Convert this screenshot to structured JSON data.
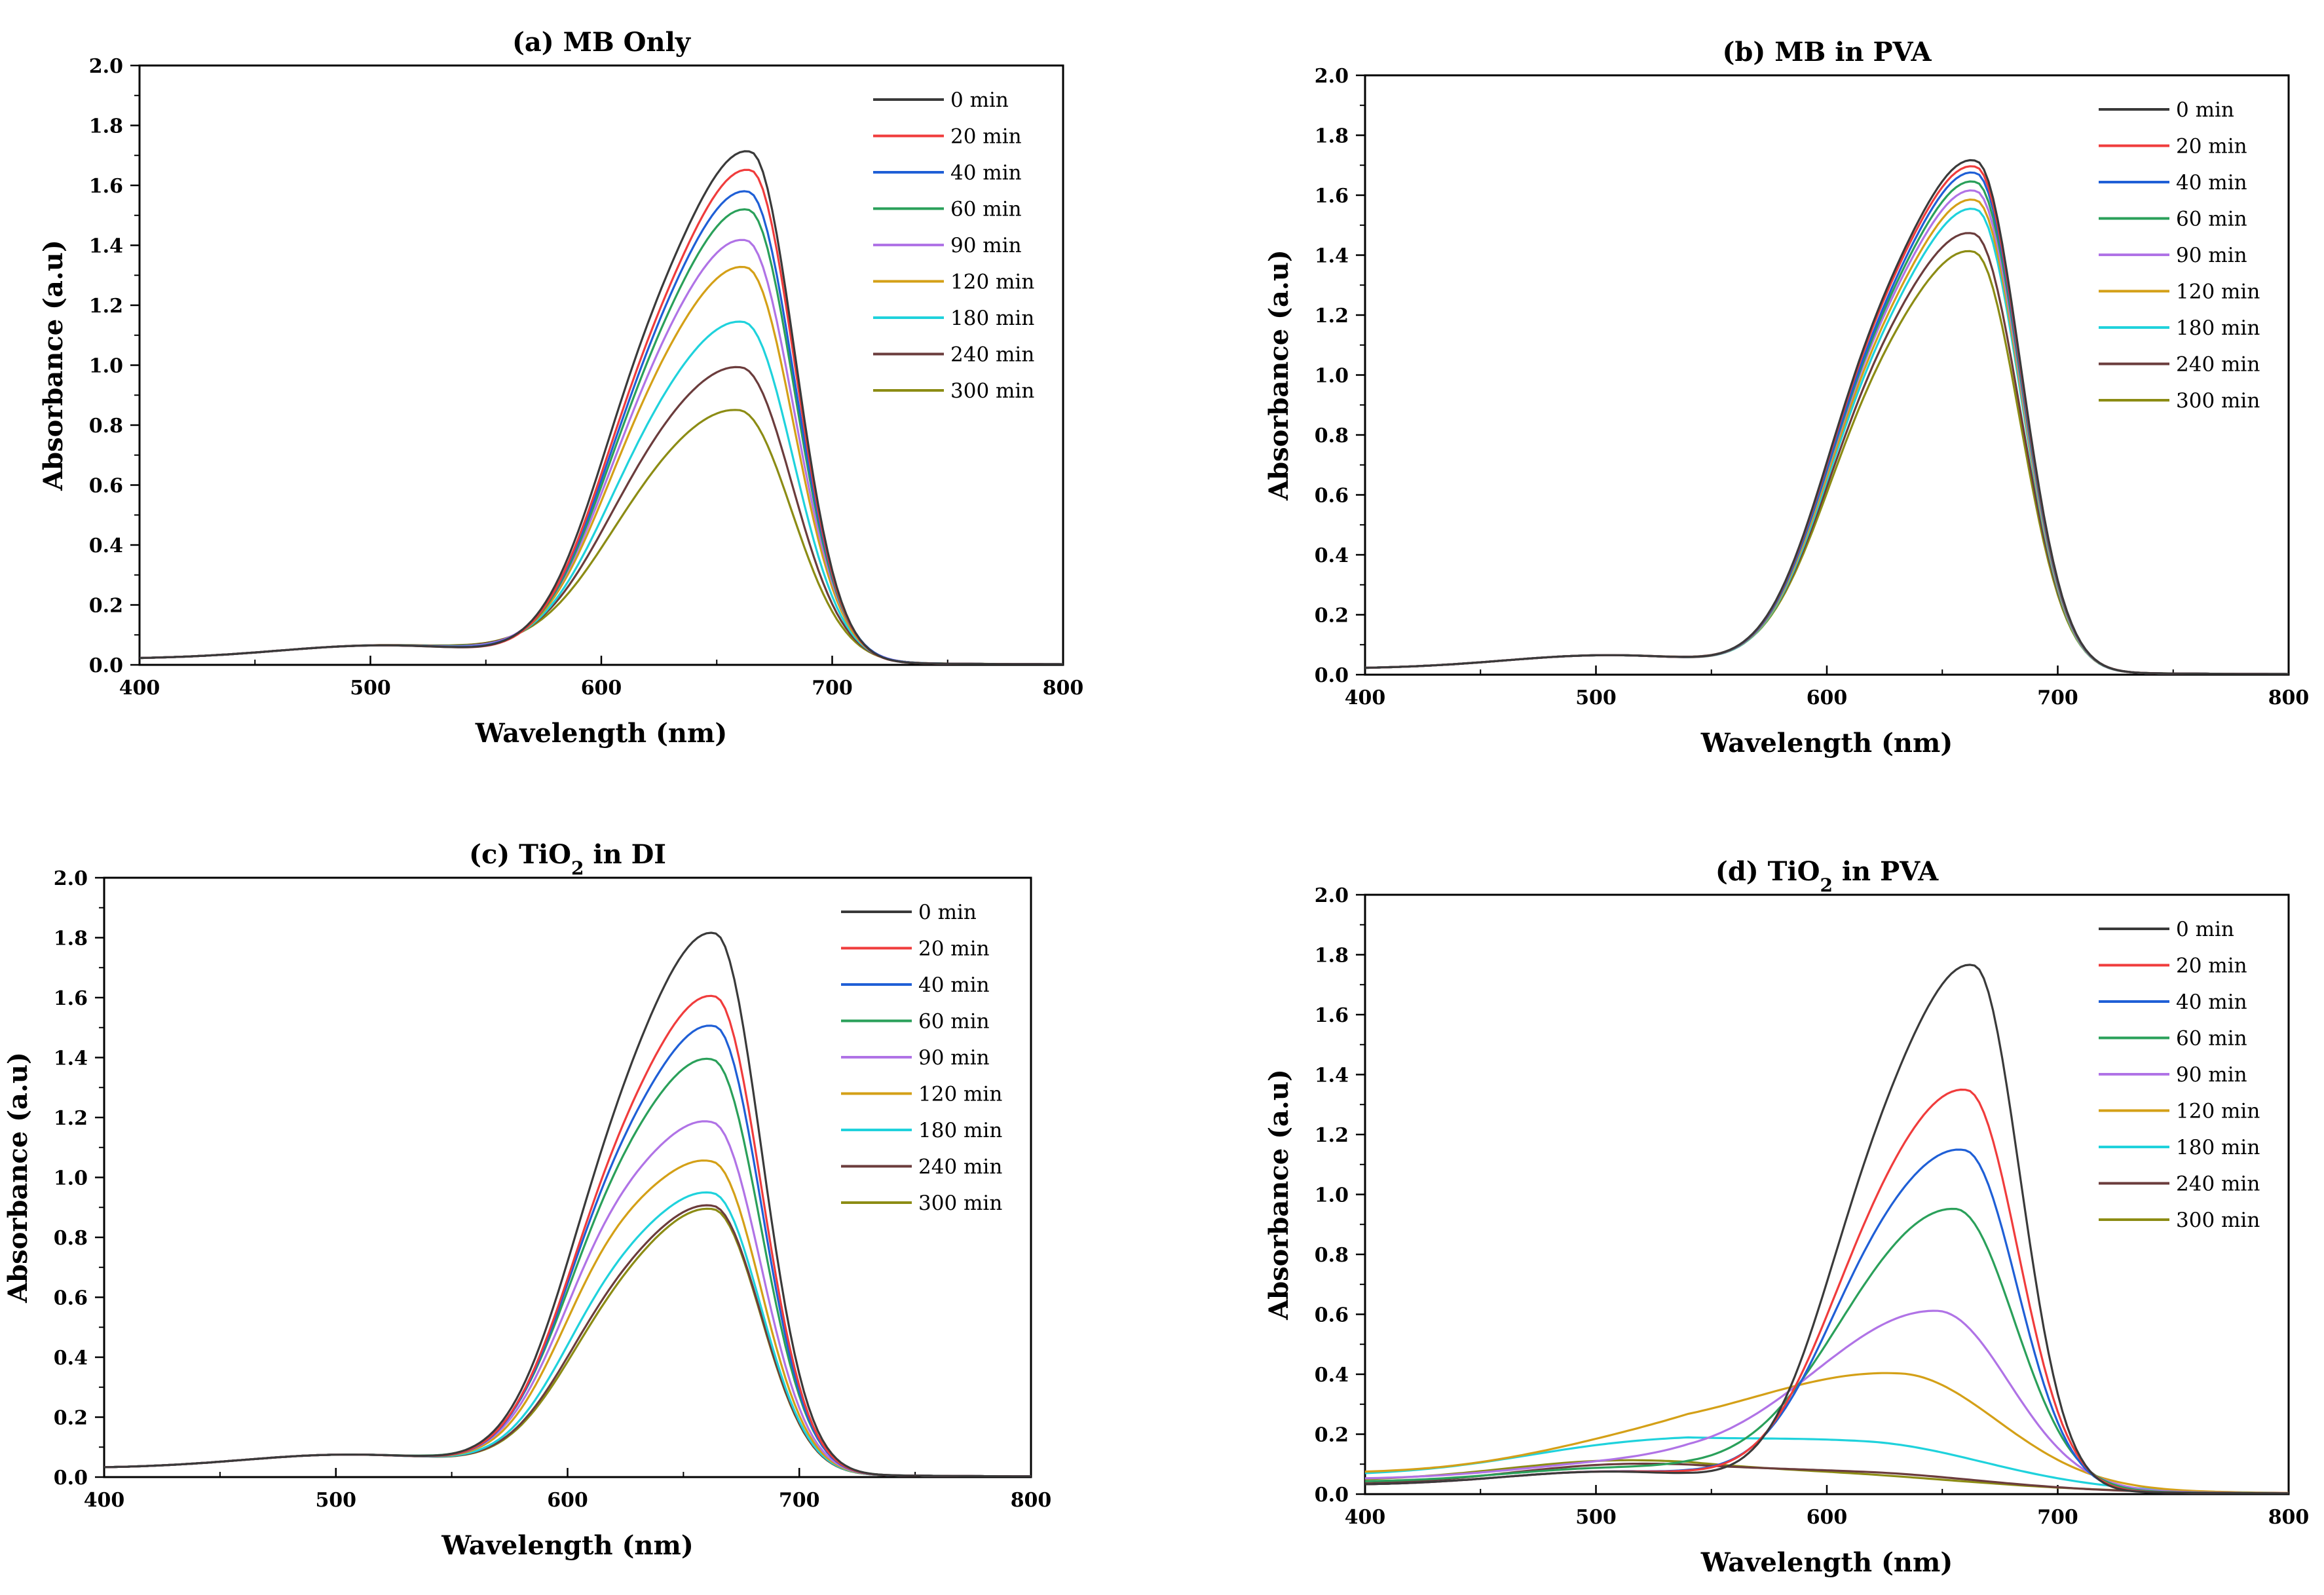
{
  "chart_data": [
    {
      "id": "a",
      "type": "line",
      "title": "(a) MB Only",
      "title_main": "(a) MB Only",
      "title_sub": "",
      "title_tail": "",
      "xlabel": "Wavelength (nm)",
      "ylabel": "Absorbance (a.u)",
      "xlim": [
        400,
        800
      ],
      "ylim": [
        0,
        2.0
      ],
      "xticks": [
        "400",
        "500",
        "600",
        "700",
        "800"
      ],
      "yticks": [
        "0.0",
        "0.2",
        "0.4",
        "0.6",
        "0.8",
        "1.0",
        "1.2",
        "1.4",
        "1.6",
        "1.8",
        "2.0"
      ],
      "legend_position": "top-right",
      "series": [
        {
          "name": "0  min",
          "color": "#3a3a3a",
          "shoulder": 0.94,
          "peak": 1.68,
          "peak_x": 665,
          "baseline": 0.02
        },
        {
          "name": "20 min",
          "color": "#f03c3c",
          "shoulder": 0.89,
          "peak": 1.62,
          "peak_x": 665,
          "baseline": 0.02
        },
        {
          "name": "40 min",
          "color": "#1f5fd6",
          "shoulder": 0.86,
          "peak": 1.55,
          "peak_x": 664,
          "baseline": 0.02
        },
        {
          "name": "60 min",
          "color": "#2aa05a",
          "shoulder": 0.83,
          "peak": 1.49,
          "peak_x": 664,
          "baseline": 0.02
        },
        {
          "name": "90 min",
          "color": "#b073e6",
          "shoulder": 0.79,
          "peak": 1.39,
          "peak_x": 663,
          "baseline": 0.02
        },
        {
          "name": "120 min",
          "color": "#d4a017",
          "shoulder": 0.75,
          "peak": 1.3,
          "peak_x": 663,
          "baseline": 0.02
        },
        {
          "name": "180 min",
          "color": "#1fd2dc",
          "shoulder": 0.66,
          "peak": 1.12,
          "peak_x": 662,
          "baseline": 0.02
        },
        {
          "name": "240 min",
          "color": "#6b3c3c",
          "shoulder": 0.59,
          "peak": 0.97,
          "peak_x": 661,
          "baseline": 0.02
        },
        {
          "name": "300 min",
          "color": "#8c8c14",
          "shoulder": 0.51,
          "peak": 0.83,
          "peak_x": 660,
          "baseline": 0.02
        }
      ]
    },
    {
      "id": "b",
      "type": "line",
      "title": "(b) MB in PVA",
      "title_main": "(b) MB in PVA",
      "title_sub": "",
      "title_tail": "",
      "xlabel": "Wavelength (nm)",
      "ylabel": "Absorbance (a.u)",
      "xlim": [
        400,
        800
      ],
      "ylim": [
        0,
        2.0
      ],
      "xticks": [
        "400",
        "500",
        "600",
        "700",
        "800"
      ],
      "yticks": [
        "0.0",
        "0.2",
        "0.4",
        "0.6",
        "0.8",
        "1.0",
        "1.2",
        "1.4",
        "1.6",
        "1.8",
        "2.0"
      ],
      "legend_position": "top-right",
      "series": [
        {
          "name": "0 min",
          "color": "#3a3a3a",
          "shoulder": 0.98,
          "peak": 1.68,
          "peak_x": 665,
          "baseline": 0.02
        },
        {
          "name": "20 min",
          "color": "#f03c3c",
          "shoulder": 0.97,
          "peak": 1.66,
          "peak_x": 665,
          "baseline": 0.02
        },
        {
          "name": "40 min",
          "color": "#1f5fd6",
          "shoulder": 0.95,
          "peak": 1.64,
          "peak_x": 665,
          "baseline": 0.02
        },
        {
          "name": "60 min",
          "color": "#2aa05a",
          "shoulder": 0.94,
          "peak": 1.61,
          "peak_x": 665,
          "baseline": 0.02
        },
        {
          "name": "90 min",
          "color": "#b073e6",
          "shoulder": 0.93,
          "peak": 1.58,
          "peak_x": 665,
          "baseline": 0.02
        },
        {
          "name": "120 min",
          "color": "#d4a017",
          "shoulder": 0.91,
          "peak": 1.55,
          "peak_x": 665,
          "baseline": 0.02
        },
        {
          "name": "180 min",
          "color": "#1fd2dc",
          "shoulder": 0.89,
          "peak": 1.52,
          "peak_x": 665,
          "baseline": 0.02
        },
        {
          "name": "240 min",
          "color": "#6b3c3c",
          "shoulder": 0.86,
          "peak": 1.44,
          "peak_x": 664,
          "baseline": 0.02
        },
        {
          "name": "300 min",
          "color": "#8c8c14",
          "shoulder": 0.83,
          "peak": 1.38,
          "peak_x": 664,
          "baseline": 0.02
        }
      ]
    },
    {
      "id": "c",
      "type": "line",
      "title": "(c) TiO2 in DI",
      "title_main": "(c) TiO",
      "title_sub": "2",
      "title_tail": " in DI",
      "xlabel": "Wavelength (nm)",
      "ylabel": "Absorbance (a.u)",
      "xlim": [
        400,
        800
      ],
      "ylim": [
        0,
        2.0
      ],
      "xticks": [
        "400",
        "500",
        "600",
        "700",
        "800"
      ],
      "yticks": [
        "0.0",
        "0.2",
        "0.4",
        "0.6",
        "0.8",
        "1.0",
        "1.2",
        "1.4",
        "1.6",
        "1.8",
        "2.0"
      ],
      "legend_position": "top-right",
      "series": [
        {
          "name": "0 min",
          "color": "#3a3a3a",
          "shoulder": 1.0,
          "peak": 1.78,
          "peak_x": 664,
          "baseline": 0.03
        },
        {
          "name": "20 min",
          "color": "#f03c3c",
          "shoulder": 0.91,
          "peak": 1.57,
          "peak_x": 664,
          "baseline": 0.03
        },
        {
          "name": "40 min",
          "color": "#1f5fd6",
          "shoulder": 0.88,
          "peak": 1.47,
          "peak_x": 664,
          "baseline": 0.03
        },
        {
          "name": "60 min",
          "color": "#2aa05a",
          "shoulder": 0.84,
          "peak": 1.36,
          "peak_x": 663,
          "baseline": 0.03
        },
        {
          "name": "90 min",
          "color": "#b073e6",
          "shoulder": 0.76,
          "peak": 1.15,
          "peak_x": 663,
          "baseline": 0.03
        },
        {
          "name": "120 min",
          "color": "#d4a017",
          "shoulder": 0.69,
          "peak": 1.02,
          "peak_x": 663,
          "baseline": 0.03
        },
        {
          "name": "180 min",
          "color": "#1fd2dc",
          "shoulder": 0.58,
          "peak": 0.92,
          "peak_x": 663,
          "baseline": 0.03
        },
        {
          "name": "240 min",
          "color": "#6b3c3c",
          "shoulder": 0.53,
          "peak": 0.88,
          "peak_x": 663,
          "baseline": 0.03
        },
        {
          "name": "300 min",
          "color": "#8c8c14",
          "shoulder": 0.51,
          "peak": 0.87,
          "peak_x": 663,
          "baseline": 0.03
        }
      ]
    },
    {
      "id": "d",
      "type": "line",
      "title": "(d) TiO2 in PVA",
      "title_main": "(d) TiO",
      "title_sub": "2",
      "title_tail": " in PVA",
      "xlabel": "Wavelength (nm)",
      "ylabel": "Absorbance (a.u)",
      "xlim": [
        400,
        800
      ],
      "ylim": [
        0,
        2.0
      ],
      "xticks": [
        "400",
        "500",
        "600",
        "700",
        "800"
      ],
      "yticks": [
        "0.0",
        "0.2",
        "0.4",
        "0.6",
        "0.8",
        "1.0",
        "1.2",
        "1.4",
        "1.6",
        "1.8",
        "2.0"
      ],
      "legend_position": "top-right",
      "series": [
        {
          "name": "0 min",
          "color": "#3a3a3a",
          "shoulder": 0.98,
          "peak": 1.73,
          "peak_x": 664,
          "baseline": 0.03
        },
        {
          "name": "20 min",
          "color": "#f03c3c",
          "shoulder": 0.8,
          "peak": 1.32,
          "peak_x": 661,
          "baseline": 0.03
        },
        {
          "name": "40 min",
          "color": "#1f5fd6",
          "shoulder": 0.72,
          "peak": 1.12,
          "peak_x": 660,
          "baseline": 0.03
        },
        {
          "name": "60 min",
          "color": "#2aa05a",
          "shoulder": 0.62,
          "peak": 0.93,
          "peak_x": 656,
          "baseline": 0.04
        },
        {
          "name": "90 min",
          "color": "#b073e6",
          "shoulder": 0.43,
          "peak": 0.59,
          "peak_x": 648,
          "baseline": 0.05
        },
        {
          "name": "120 min",
          "color": "#d4a017",
          "shoulder": 0.3,
          "peak": 0.37,
          "peak_x": 632,
          "baseline": 0.07
        },
        {
          "name": "180 min",
          "color": "#1fd2dc",
          "shoulder": 0.14,
          "peak": 0.14,
          "peak_x": 617,
          "baseline": 0.06
        },
        {
          "name": "240 min",
          "color": "#6b3c3c",
          "shoulder": 0.05,
          "peak": 0.05,
          "peak_x": 615,
          "baseline": 0.03
        },
        {
          "name": "300 min",
          "color": "#8c8c14",
          "shoulder": 0.04,
          "peak": 0.04,
          "peak_x": 600,
          "baseline": 0.04
        }
      ]
    }
  ]
}
